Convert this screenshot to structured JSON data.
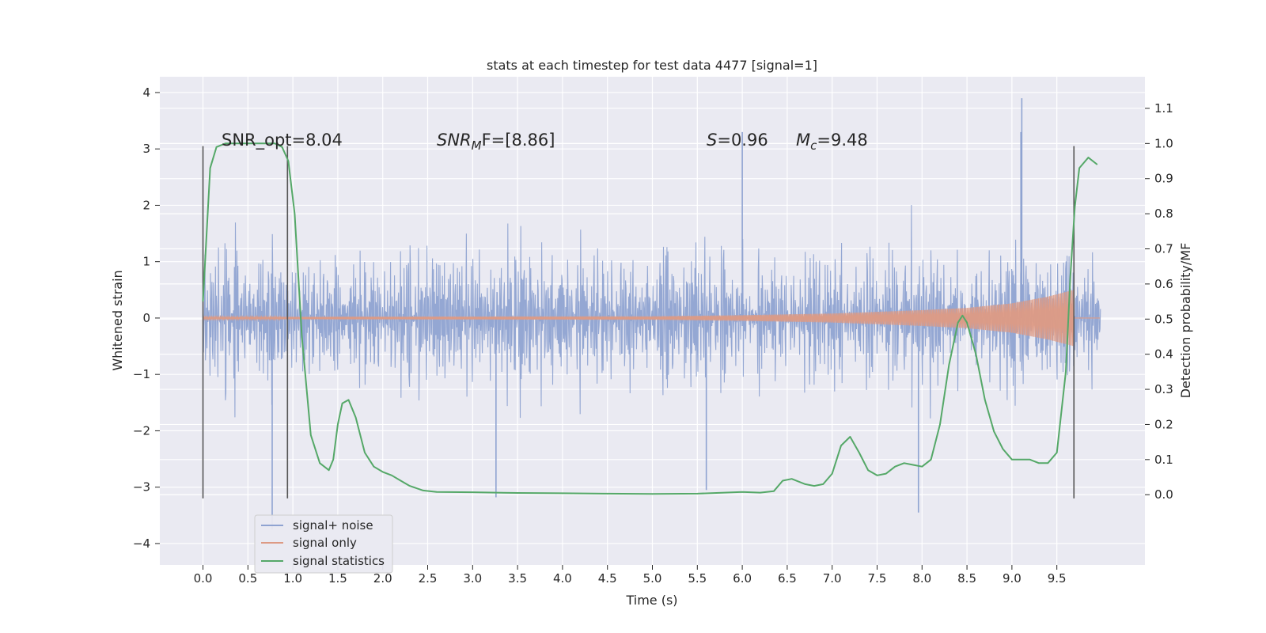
{
  "chart_data": {
    "type": "line",
    "title": "stats at each timestep for test data 4477 [signal=1]",
    "xlabel": "Time (s)",
    "ylabel": "Whitened strain",
    "ylabel_right": "Detection probability/MF",
    "xlim": [
      -0.48,
      10.48
    ],
    "ylim": [
      -4.38,
      4.28
    ],
    "ylim_right": [
      -0.2,
      1.19
    ],
    "x_ticks": [
      0.0,
      0.5,
      1.0,
      1.5,
      2.0,
      2.5,
      3.0,
      3.5,
      4.0,
      4.5,
      5.0,
      5.5,
      6.0,
      6.5,
      7.0,
      7.5,
      8.0,
      8.5,
      9.0,
      9.5
    ],
    "x_tick_labels": [
      "0.0",
      "0.5",
      "1.0",
      "1.5",
      "2.0",
      "2.5",
      "3.0",
      "3.5",
      "4.0",
      "4.5",
      "5.0",
      "5.5",
      "6.0",
      "6.5",
      "7.0",
      "7.5",
      "8.0",
      "8.5",
      "9.0",
      "9.5"
    ],
    "y_ticks": [
      4,
      3,
      2,
      1,
      0,
      -1,
      -2,
      -3,
      -4
    ],
    "y_tick_labels": [
      "4",
      "3",
      "2",
      "1",
      "0",
      "−1",
      "−2",
      "−3",
      "−4"
    ],
    "y_right_ticks": [
      1.1,
      1.0,
      0.9,
      0.8,
      0.7,
      0.6,
      0.5,
      0.4,
      0.3,
      0.2,
      0.1,
      0.0
    ],
    "y_right_tick_labels": [
      "1.1",
      "1.0",
      "0.9",
      "0.8",
      "0.7",
      "0.6",
      "0.5",
      "0.4",
      "0.3",
      "0.2",
      "0.1",
      "0.0"
    ],
    "grid": true,
    "legend_position": "bottom-left",
    "annotations": {
      "snr_opt": "SNR_opt=8.04",
      "snr_mf_label": "SNR",
      "snr_mf_sub": "M",
      "snr_mf_rest": "F=[8.86]",
      "s_label": "S",
      "s_value": "=0.96",
      "mc_label": "M",
      "mc_sub": "c",
      "mc_value": "=9.48"
    },
    "vertical_lines": [
      {
        "x": 0.0,
        "y": [
          -3.2,
          3.05
        ]
      },
      {
        "x": 0.94,
        "y": [
          -3.2,
          3.05
        ]
      },
      {
        "x": 9.69,
        "y": [
          -3.2,
          3.05
        ]
      }
    ],
    "series": [
      {
        "name": "signal+ noise",
        "color": "#8fa3d1",
        "kind": "noise-band",
        "t_range": [
          0.0,
          9.98
        ],
        "typical_amplitude": 1.3,
        "peak_values": [
          {
            "t": 0.77,
            "v": -3.75
          },
          {
            "t": 3.26,
            "v": -3.18
          },
          {
            "t": 5.6,
            "v": -3.05
          },
          {
            "t": 6.0,
            "v": 3.3
          },
          {
            "t": 7.96,
            "v": -3.45
          },
          {
            "t": 9.11,
            "v": 3.9
          },
          {
            "t": 9.1,
            "v": 3.3
          }
        ]
      },
      {
        "name": "signal only",
        "color": "#dd9a84",
        "kind": "chirp",
        "t_range": [
          0.0,
          9.69
        ],
        "envelope": [
          [
            0.0,
            0.02
          ],
          [
            5.0,
            0.03
          ],
          [
            6.0,
            0.05
          ],
          [
            7.0,
            0.08
          ],
          [
            8.0,
            0.14
          ],
          [
            8.5,
            0.18
          ],
          [
            9.0,
            0.26
          ],
          [
            9.4,
            0.38
          ],
          [
            9.69,
            0.5
          ]
        ]
      },
      {
        "name": "signal statistics",
        "color": "#55a868",
        "axis": "right",
        "x": [
          0.0,
          0.08,
          0.15,
          0.25,
          0.4,
          0.6,
          0.8,
          0.88,
          0.95,
          1.02,
          1.1,
          1.2,
          1.3,
          1.4,
          1.45,
          1.5,
          1.55,
          1.62,
          1.7,
          1.8,
          1.9,
          2.0,
          2.1,
          2.2,
          2.3,
          2.45,
          2.6,
          3.0,
          3.5,
          4.0,
          4.5,
          5.0,
          5.5,
          6.0,
          6.2,
          6.35,
          6.45,
          6.55,
          6.7,
          6.8,
          6.9,
          7.0,
          7.1,
          7.2,
          7.3,
          7.4,
          7.5,
          7.6,
          7.7,
          7.8,
          7.9,
          8.0,
          8.1,
          8.2,
          8.3,
          8.4,
          8.45,
          8.5,
          8.6,
          8.7,
          8.8,
          8.9,
          9.0,
          9.1,
          9.2,
          9.3,
          9.4,
          9.5,
          9.6,
          9.65,
          9.7,
          9.75,
          9.85,
          9.95
        ],
        "values": [
          0.55,
          0.93,
          0.99,
          1.0,
          1.0,
          1.0,
          1.0,
          0.99,
          0.95,
          0.8,
          0.45,
          0.17,
          0.09,
          0.07,
          0.1,
          0.2,
          0.26,
          0.27,
          0.22,
          0.12,
          0.08,
          0.065,
          0.055,
          0.04,
          0.025,
          0.012,
          0.008,
          0.007,
          0.005,
          0.004,
          0.003,
          0.002,
          0.003,
          0.008,
          0.006,
          0.01,
          0.04,
          0.045,
          0.03,
          0.025,
          0.03,
          0.06,
          0.14,
          0.165,
          0.12,
          0.07,
          0.055,
          0.06,
          0.08,
          0.09,
          0.085,
          0.08,
          0.1,
          0.2,
          0.37,
          0.49,
          0.51,
          0.49,
          0.4,
          0.27,
          0.18,
          0.13,
          0.1,
          0.1,
          0.1,
          0.09,
          0.09,
          0.12,
          0.35,
          0.62,
          0.82,
          0.93,
          0.96,
          0.94
        ]
      }
    ]
  }
}
